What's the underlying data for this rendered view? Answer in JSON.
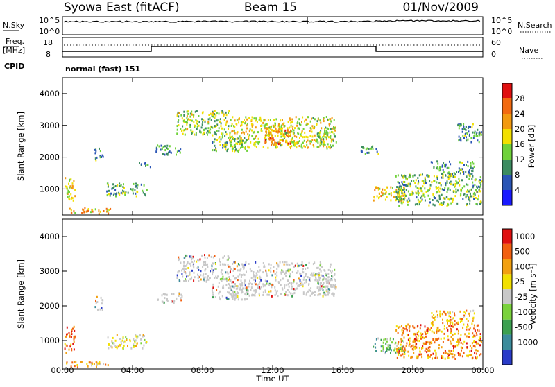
{
  "header": {
    "station": "Syowa East (fitACF)",
    "beam": "Beam 15",
    "date": "01/Nov/2009"
  },
  "noise_panel": {
    "left_label": "N.Sky",
    "right_label": "N.Search",
    "tick_top": "10^5",
    "tick_bottom": "10^0"
  },
  "freq_panel": {
    "left_label_1": "Freq.",
    "left_label_2": "[MHz]",
    "left_tick_top": "18",
    "left_tick_bottom": "8",
    "right_label": "Nave",
    "right_tick_top": "60",
    "right_tick_bottom": "0"
  },
  "cpid": {
    "label": "CPID",
    "text": "normal (fast) 151"
  },
  "chart_data": [
    {
      "type": "heatmap",
      "parameter": "Power",
      "ylabel": "Slant Range [km]",
      "xlabel": "Time UT",
      "x_ticks": [
        "00:00",
        "04:00",
        "08:00",
        "12:00",
        "16:00",
        "20:00",
        "00:00"
      ],
      "x_range_hours": [
        0,
        24
      ],
      "ylim": [
        180,
        4500
      ],
      "y_ticks": [
        1000,
        2000,
        3000,
        4000
      ],
      "colorbar": {
        "label": "Power [dB]",
        "ticks": [
          4,
          8,
          12,
          16,
          20,
          24,
          28
        ],
        "colors": [
          "#1a1aff",
          "#2a55b5",
          "#3c8c60",
          "#6fd23a",
          "#f2e000",
          "#f29a10",
          "#f26a10",
          "#e01010"
        ]
      },
      "regions": [
        {
          "t": [
            0.1,
            0.7
          ],
          "r": [
            650,
            1450
          ],
          "level": 0.55
        },
        {
          "t": [
            0.2,
            2.8
          ],
          "r": [
            250,
            420
          ],
          "level": 0.7
        },
        {
          "t": [
            1.8,
            2.3
          ],
          "r": [
            1900,
            2300
          ],
          "level": 0.3
        },
        {
          "t": [
            2.5,
            4.8
          ],
          "r": [
            800,
            1200
          ],
          "level": 0.35
        },
        {
          "t": [
            4.3,
            5.0
          ],
          "r": [
            1700,
            1900
          ],
          "level": 0.3
        },
        {
          "t": [
            5.3,
            6.8
          ],
          "r": [
            2100,
            2400
          ],
          "level": 0.3
        },
        {
          "t": [
            6.5,
            9.5
          ],
          "r": [
            2700,
            3500
          ],
          "level": 0.45
        },
        {
          "t": [
            8.5,
            10.5
          ],
          "r": [
            2200,
            2700
          ],
          "level": 0.4
        },
        {
          "t": [
            9.5,
            15.5
          ],
          "r": [
            2300,
            3300
          ],
          "level": 0.55
        },
        {
          "t": [
            11.5,
            13.0
          ],
          "r": [
            2400,
            2900
          ],
          "level": 0.75
        },
        {
          "t": [
            14.5,
            15.6
          ],
          "r": [
            2500,
            3000
          ],
          "level": 0.45
        },
        {
          "t": [
            17.0,
            18.0
          ],
          "r": [
            2100,
            2400
          ],
          "level": 0.3
        },
        {
          "t": [
            17.7,
            19.5
          ],
          "r": [
            650,
            1100
          ],
          "level": 0.6
        },
        {
          "t": [
            19.0,
            23.9
          ],
          "r": [
            500,
            1500
          ],
          "level": 0.4
        },
        {
          "t": [
            21.0,
            23.5
          ],
          "r": [
            1500,
            1900
          ],
          "level": 0.3
        },
        {
          "t": [
            22.5,
            23.9
          ],
          "r": [
            2500,
            3100
          ],
          "level": 0.3
        }
      ]
    },
    {
      "type": "heatmap",
      "parameter": "Velocity",
      "ylabel": "Slant Range [km]",
      "xlabel": "Time UT",
      "x_ticks": [
        "00:00",
        "04:00",
        "08:00",
        "12:00",
        "16:00",
        "20:00",
        "00:00"
      ],
      "x_range_hours": [
        0,
        24
      ],
      "ylim": [
        180,
        4500
      ],
      "y_ticks": [
        1000,
        2000,
        3000,
        4000
      ],
      "colorbar": {
        "label": "Velocity [m s⁻¹]",
        "ticks": [
          "1000",
          "500",
          "100",
          "25",
          "-25",
          "-100",
          "-500",
          "-1000"
        ],
        "colors": [
          "#2a3cc8",
          "#3c8c9c",
          "#3ca050",
          "#7ad23c",
          "#c8c8c8",
          "#f2e000",
          "#f2a010",
          "#f26010",
          "#e01010"
        ]
      },
      "regions": [
        {
          "t": [
            0.1,
            0.7
          ],
          "r": [
            650,
            1450
          ],
          "level": 0.85
        },
        {
          "t": [
            0.2,
            2.8
          ],
          "r": [
            250,
            420
          ],
          "level": 0.7
        },
        {
          "t": [
            1.8,
            2.3
          ],
          "r": [
            1900,
            2300
          ],
          "level": 0.45
        },
        {
          "t": [
            2.5,
            4.8
          ],
          "r": [
            800,
            1200
          ],
          "level": 0.55
        },
        {
          "t": [
            5.3,
            6.8
          ],
          "r": [
            2100,
            2400
          ],
          "level": 0.45
        },
        {
          "t": [
            6.5,
            9.5
          ],
          "r": [
            2700,
            3500
          ],
          "level": 0.45
        },
        {
          "t": [
            8.5,
            10.5
          ],
          "r": [
            2200,
            2700
          ],
          "level": 0.45
        },
        {
          "t": [
            9.5,
            15.5
          ],
          "r": [
            2300,
            3300
          ],
          "level": 0.45
        },
        {
          "t": [
            14.5,
            15.6
          ],
          "r": [
            2500,
            3000
          ],
          "level": 0.45
        },
        {
          "t": [
            17.7,
            19.5
          ],
          "r": [
            650,
            1100
          ],
          "level": 0.3
        },
        {
          "t": [
            19.0,
            23.9
          ],
          "r": [
            500,
            1500
          ],
          "level": 0.8
        },
        {
          "t": [
            21.0,
            23.5
          ],
          "r": [
            1500,
            1900
          ],
          "level": 0.7
        }
      ]
    }
  ]
}
